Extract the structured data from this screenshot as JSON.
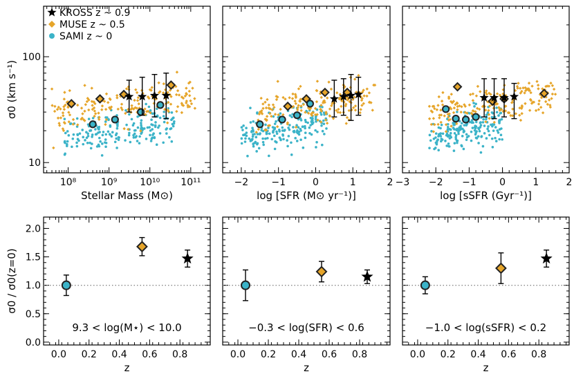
{
  "colors": {
    "kross": "#000000",
    "muse": "#e6a52a",
    "sami": "#3bb3c8",
    "axis": "#000000",
    "reference_line": "#888888"
  },
  "legend": [
    {
      "marker": "star",
      "label": "KROSS z ~ 0.9"
    },
    {
      "marker": "diamond",
      "label": "MUSE z ~ 0.5"
    },
    {
      "marker": "circle",
      "label": "SAMI z ~ 0"
    }
  ],
  "chart_data": [
    {
      "type": "scatter",
      "xlabel": "Stellar Mass (M⊙)",
      "ylabel": "σ0 (km s⁻¹)",
      "xscale": "log",
      "yscale": "log",
      "xlim": [
        25000000,
        300000000000
      ],
      "ylim": [
        8,
        300
      ],
      "xticks": [
        100000000,
        1000000000,
        10000000000,
        100000000000
      ],
      "xticklabels": [
        "10⁸",
        "10⁹",
        "10¹⁰",
        "10¹¹"
      ],
      "yticks": [
        10,
        100
      ],
      "yticklabels": [
        "10",
        "100"
      ],
      "legend_position": "top-left",
      "series": [
        {
          "name": "SAMI z ~ 0",
          "binned": [
            [
              400000000,
              23
            ],
            [
              1400000000,
              25.5
            ],
            [
              6000000000,
              30
            ],
            [
              18000000000,
              35
            ]
          ]
        },
        {
          "name": "MUSE z ~ 0.5",
          "binned": [
            [
              120000000,
              36
            ],
            [
              600000000,
              40
            ],
            [
              2300000000,
              44
            ],
            [
              33000000000,
              54
            ]
          ]
        },
        {
          "name": "KROSS z ~ 0.9",
          "points": [
            [
              3100000000,
              42,
              30,
              60
            ],
            [
              6500000000,
              42,
              28,
              64
            ],
            [
              13000000000,
              43,
              27,
              68
            ],
            [
              25000000000,
              43,
              26,
              70
            ]
          ]
        }
      ]
    },
    {
      "type": "scatter",
      "xlabel": "log [SFR (M⊙ yr⁻¹)]",
      "xscale": "linear",
      "yscale": "log",
      "xlim": [
        -2.5,
        2
      ],
      "ylim": [
        8,
        300
      ],
      "xticks": [
        -2,
        -1,
        0,
        1,
        2
      ],
      "xticklabels": [
        "−2",
        "−1",
        "0",
        "1",
        "2"
      ],
      "series": [
        {
          "name": "SAMI z ~ 0",
          "binned": [
            [
              -1.5,
              23
            ],
            [
              -0.9,
              25.5
            ],
            [
              -0.5,
              28
            ],
            [
              -0.15,
              36
            ]
          ]
        },
        {
          "name": "MUSE z ~ 0.5",
          "binned": [
            [
              -0.75,
              34
            ],
            [
              -0.25,
              40
            ],
            [
              0.25,
              46
            ],
            [
              0.85,
              46
            ]
          ]
        },
        {
          "name": "KROSS z ~ 0.9",
          "points": [
            [
              0.5,
              40,
              27,
              60
            ],
            [
              0.75,
              42,
              28,
              62
            ],
            [
              0.95,
              43,
              25,
              68
            ],
            [
              1.15,
              44,
              28,
              64
            ]
          ]
        }
      ]
    },
    {
      "type": "scatter",
      "xlabel": "log [sSFR (Gyr⁻¹)]",
      "xscale": "linear",
      "yscale": "log",
      "xlim": [
        -3,
        2
      ],
      "ylim": [
        8,
        300
      ],
      "xticks": [
        -3,
        -2,
        -1,
        0,
        1,
        2
      ],
      "xticklabels": [
        "−3",
        "−2",
        "−1",
        "0",
        "1",
        "2"
      ],
      "series": [
        {
          "name": "SAMI z ~ 0",
          "binned": [
            [
              -1.7,
              32
            ],
            [
              -1.4,
              26
            ],
            [
              -1.1,
              25.5
            ],
            [
              -0.8,
              27
            ]
          ]
        },
        {
          "name": "MUSE z ~ 0.5",
          "binned": [
            [
              -1.35,
              52
            ],
            [
              -0.3,
              38
            ],
            [
              0.05,
              40
            ],
            [
              1.25,
              45
            ]
          ]
        },
        {
          "name": "KROSS z ~ 0.9",
          "points": [
            [
              -0.55,
              41,
              27,
              62
            ],
            [
              -0.25,
              41,
              26,
              62
            ],
            [
              0.05,
              41,
              27,
              62
            ],
            [
              0.35,
              42,
              26,
              56
            ]
          ]
        }
      ]
    },
    {
      "type": "scatter",
      "xlabel": "z",
      "ylabel": "σ0 / σ0(z=0)",
      "xlim": [
        -0.1,
        1.0
      ],
      "ylim": [
        -0.05,
        2.2
      ],
      "xticks": [
        0,
        0.2,
        0.4,
        0.6,
        0.8
      ],
      "xticklabels": [
        "0.0",
        "0.2",
        "0.4",
        "0.6",
        "0.8"
      ],
      "yticks": [
        0,
        0.5,
        1,
        1.5,
        2
      ],
      "yticklabels": [
        "0.0",
        "0.5",
        "1.0",
        "1.5",
        "2.0"
      ],
      "reference_line": 1.0,
      "annotation": "9.3 < log(M⋆) < 10.0",
      "series": [
        {
          "name": "SAMI z ~ 0",
          "x": 0.05,
          "y": 1.0,
          "err": 0.18
        },
        {
          "name": "MUSE z ~ 0.5",
          "x": 0.55,
          "y": 1.68,
          "err": 0.16
        },
        {
          "name": "KROSS z ~ 0.9",
          "x": 0.85,
          "y": 1.47,
          "err": 0.15
        }
      ]
    },
    {
      "type": "scatter",
      "xlabel": "z",
      "xlim": [
        -0.1,
        1.0
      ],
      "ylim": [
        -0.05,
        2.2
      ],
      "xticks": [
        0,
        0.2,
        0.4,
        0.6,
        0.8
      ],
      "xticklabels": [
        "0.0",
        "0.2",
        "0.4",
        "0.6",
        "0.8"
      ],
      "reference_line": 1.0,
      "annotation": "−0.3 < log(SFR) < 0.6",
      "series": [
        {
          "name": "SAMI z ~ 0",
          "x": 0.05,
          "y": 1.0,
          "err": 0.27
        },
        {
          "name": "MUSE z ~ 0.5",
          "x": 0.55,
          "y": 1.24,
          "err": 0.18
        },
        {
          "name": "KROSS z ~ 0.9",
          "x": 0.85,
          "y": 1.15,
          "err": 0.12
        }
      ]
    },
    {
      "type": "scatter",
      "xlabel": "z",
      "xlim": [
        -0.1,
        1.0
      ],
      "ylim": [
        -0.05,
        2.2
      ],
      "xticks": [
        0,
        0.2,
        0.4,
        0.6,
        0.8
      ],
      "xticklabels": [
        "0.0",
        "0.2",
        "0.4",
        "0.6",
        "0.8"
      ],
      "reference_line": 1.0,
      "annotation": "−1.0 < log(sSFR) < 0.2",
      "series": [
        {
          "name": "SAMI z ~ 0",
          "x": 0.05,
          "y": 1.0,
          "err": 0.15
        },
        {
          "name": "MUSE z ~ 0.5",
          "x": 0.55,
          "y": 1.3,
          "err": 0.27
        },
        {
          "name": "KROSS z ~ 0.9",
          "x": 0.85,
          "y": 1.47,
          "err": 0.15
        }
      ]
    }
  ]
}
